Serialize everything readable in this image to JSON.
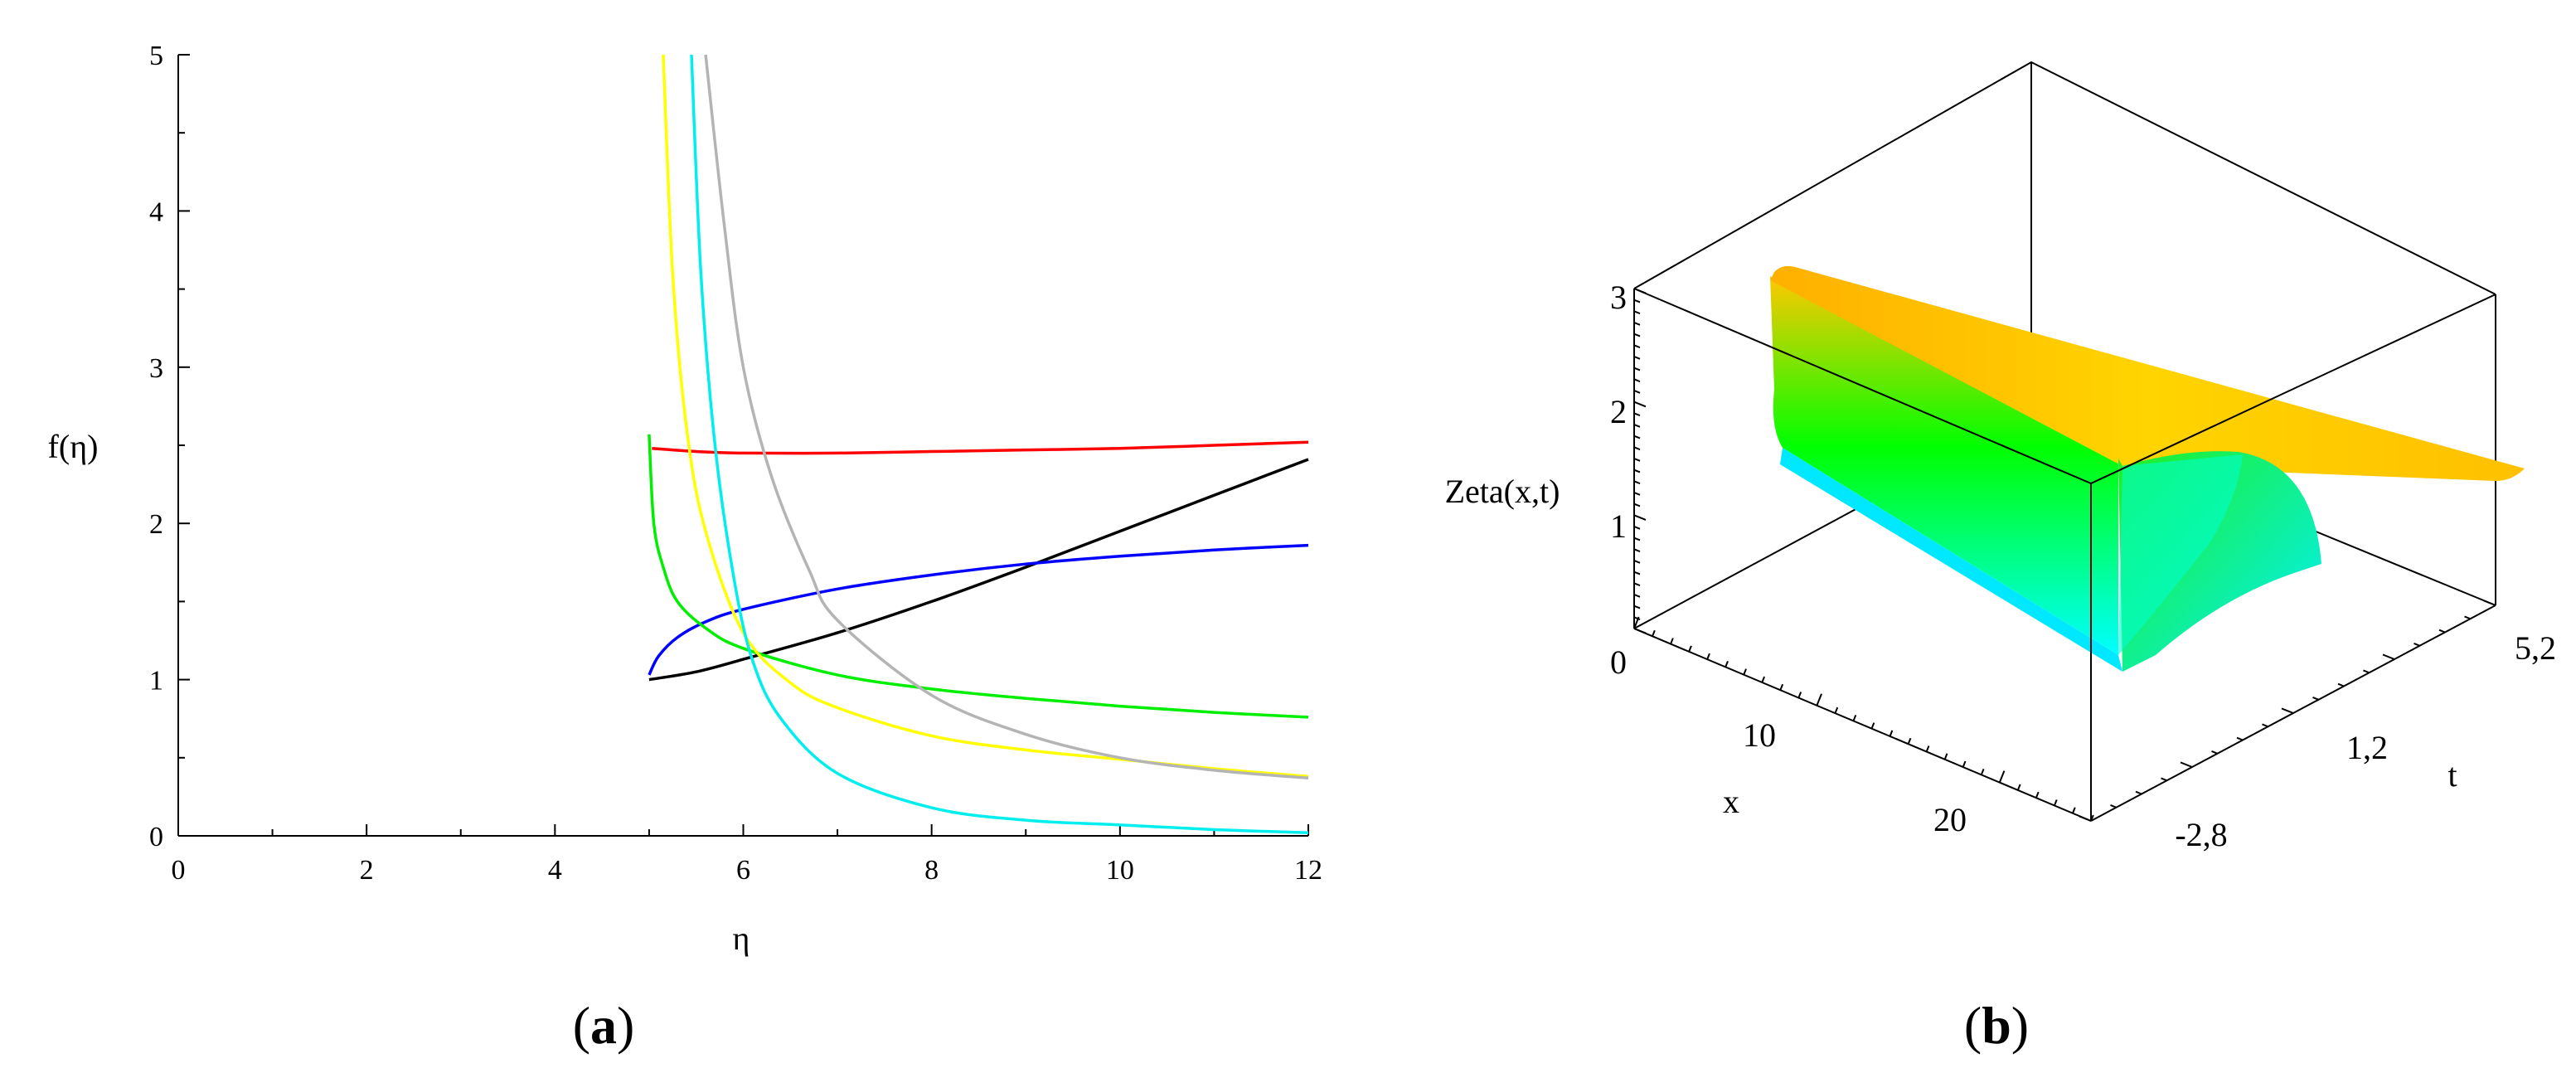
{
  "chart_data": [
    {
      "panel_label": "a",
      "type": "line",
      "xlabel": "η",
      "ylabel": "f(η)",
      "xlim": [
        0,
        12
      ],
      "ylim": [
        0,
        5
      ],
      "x_ticks": [
        "0",
        "2",
        "4",
        "6",
        "8",
        "10",
        "12"
      ],
      "y_ticks": [
        "0",
        "1",
        "2",
        "3",
        "4",
        "5"
      ],
      "grid": false,
      "series": [
        {
          "color": "#ff0000",
          "x": [
            5.03,
            5.5,
            6,
            7,
            8,
            9,
            10,
            11,
            12
          ],
          "y": [
            2.48,
            2.46,
            2.45,
            2.45,
            2.46,
            2.47,
            2.48,
            2.5,
            2.52
          ]
        },
        {
          "color": "#000000",
          "x": [
            5.0,
            5.5,
            6,
            7,
            8,
            9,
            10,
            11,
            12
          ],
          "y": [
            1.0,
            1.05,
            1.13,
            1.3,
            1.5,
            1.72,
            1.95,
            2.18,
            2.41
          ]
        },
        {
          "color": "#0000ff",
          "x": [
            5.0,
            5.1,
            5.3,
            5.6,
            6,
            7,
            8,
            9,
            10,
            11,
            12
          ],
          "y": [
            1.03,
            1.15,
            1.27,
            1.37,
            1.45,
            1.58,
            1.67,
            1.74,
            1.79,
            1.83,
            1.86
          ]
        },
        {
          "color": "#00ee00",
          "x": [
            5.0,
            5.05,
            5.15,
            5.3,
            5.6,
            6,
            7,
            8,
            9,
            10,
            11,
            12
          ],
          "y": [
            2.57,
            2.0,
            1.72,
            1.5,
            1.33,
            1.2,
            1.03,
            0.94,
            0.88,
            0.83,
            0.79,
            0.76
          ]
        },
        {
          "color": "#ffff00",
          "x": [
            5.15,
            5.25,
            5.4,
            5.6,
            6,
            6.5,
            7,
            8,
            9,
            10,
            11,
            12
          ],
          "y": [
            5.0,
            3.6,
            2.6,
            1.95,
            1.3,
            0.98,
            0.82,
            0.64,
            0.55,
            0.49,
            0.43,
            0.38
          ]
        },
        {
          "color": "#00eeee",
          "x": [
            5.45,
            5.55,
            5.7,
            5.9,
            6.1,
            6.4,
            7,
            8,
            9,
            10,
            11,
            12
          ],
          "y": [
            5.0,
            3.6,
            2.5,
            1.65,
            1.12,
            0.75,
            0.4,
            0.18,
            0.1,
            0.07,
            0.04,
            0.02
          ]
        },
        {
          "color": "#b4b4b4",
          "x": [
            5.6,
            5.8,
            6,
            6.3,
            6.7,
            7,
            8,
            9,
            10,
            11,
            12
          ],
          "y": [
            5.0,
            3.9,
            3.0,
            2.3,
            1.7,
            1.38,
            0.9,
            0.65,
            0.5,
            0.42,
            0.37
          ]
        }
      ]
    },
    {
      "panel_label": "b",
      "type": "surface3d",
      "zlabel": "Zeta(x,t)",
      "xlabel": "x",
      "ylabel": "t",
      "z_ticks": [
        "0",
        "1",
        "2",
        "3"
      ],
      "x_ticks": [
        "10",
        "20"
      ],
      "t_ticks": [
        "-2,8",
        "1,2",
        "5,2"
      ],
      "colors": [
        "#ffc800",
        "#00ff00",
        "#00ffff"
      ]
    }
  ]
}
